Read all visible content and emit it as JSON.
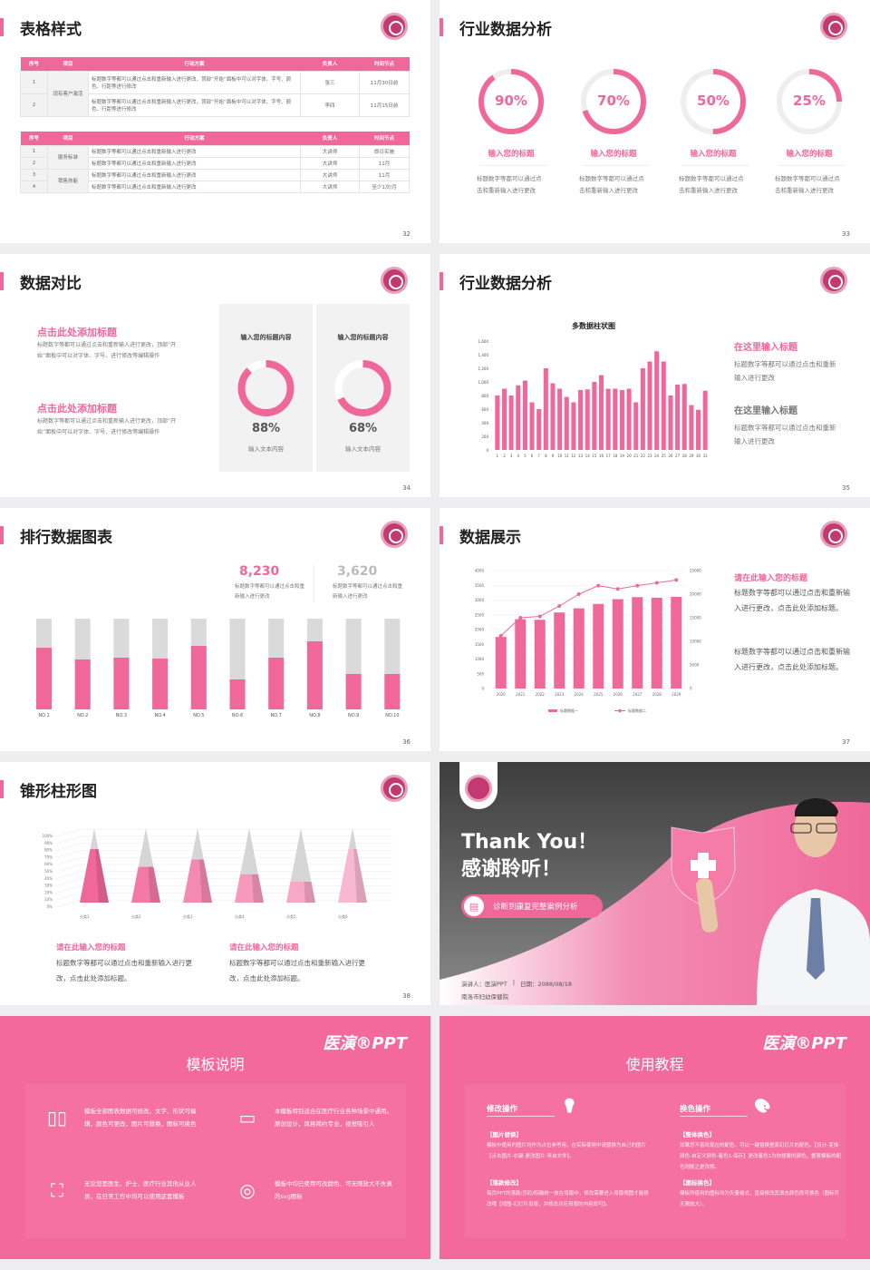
{
  "colors": {
    "accent": "#f0689a",
    "grey": "#dadada",
    "text": "#222222"
  },
  "slide32": {
    "title": "表格样式",
    "page": "32",
    "headers": [
      "序号",
      "项目",
      "行动方案",
      "负责人",
      "时间节点"
    ],
    "table1": {
      "group": "现有客户激活",
      "rows": [
        {
          "no": "1",
          "plan": "标题数字等都可以通过点击和重新输入进行更改，顶部“开始”面板中可以对字体、字号、颜色、行距等进行修改",
          "owner": "张三",
          "time": "11月30日前"
        },
        {
          "no": "2",
          "plan": "标题数字等都可以通过点击和重新输入进行更改，顶部“开始”面板中可以对字体、字号、颜色、行距等进行修改",
          "owner": "李四",
          "time": "11月15日前"
        }
      ]
    },
    "table2": {
      "groups": [
        "服务标准",
        "销售技能"
      ],
      "rows": [
        {
          "no": "1",
          "plan": "标题数字等都可以通过点击和重新输入进行更改",
          "owner": "大讲师",
          "time": "即日实施"
        },
        {
          "no": "2",
          "plan": "标题数字等都可以通过点击和重新输入进行更改",
          "owner": "大讲师",
          "time": "11月"
        },
        {
          "no": "3",
          "plan": "标题数字等都可以通过点击和重新输入进行更改",
          "owner": "大讲师",
          "time": "11月"
        },
        {
          "no": "4",
          "plan": "标题数字等都可以通过点击和重新输入进行更改",
          "owner": "大讲师",
          "time": "至少1次/月"
        }
      ]
    }
  },
  "slide33": {
    "title": "行业数据分析",
    "page": "33",
    "items": [
      {
        "value": 90,
        "label": "90%",
        "heading": "输入您的标题",
        "text": "标题数字等都可以通过点击和重新输入进行更改"
      },
      {
        "value": 70,
        "label": "70%",
        "heading": "输入您的标题",
        "text": "标题数字等都可以通过点击和重新输入进行更改"
      },
      {
        "value": 50,
        "label": "50%",
        "heading": "输入您的标题",
        "text": "标题数字等都可以通过点击和重新输入进行更改"
      },
      {
        "value": 25,
        "label": "25%",
        "heading": "输入您的标题",
        "text": "标题数字等都可以通过点击和重新输入进行更改"
      }
    ]
  },
  "slide34": {
    "title": "数据对比",
    "page": "34",
    "blocks": [
      {
        "heading": "点击此处添加标题",
        "text": "标题数字等都可以通过点击和重新输入进行更改，顶部“开始”面板中可以对字体、字号、进行修改等编辑操作"
      },
      {
        "heading": "点击此处添加标题",
        "text": "标题数字等都可以通过点击和重新输入进行更改，顶部“开始”面板中可以对字体、字号、进行修改等编辑操作"
      }
    ],
    "cards": [
      {
        "heading": "输入您的标题内容",
        "value": 88,
        "label": "88%",
        "caption": "输入文本内容"
      },
      {
        "heading": "输入您的标题内容",
        "value": 68,
        "label": "68%",
        "caption": "输入文本内容"
      }
    ]
  },
  "slide35": {
    "title": "行业数据分析",
    "page": "35",
    "side": [
      {
        "heading": "在这里输入标题",
        "text": "标题数字等都可以通过点击和重新输入进行更改"
      },
      {
        "heading": "在这里输入标题",
        "text": "标题数字等都可以通过点击和重新输入进行更改"
      }
    ]
  },
  "slide36": {
    "title": "排行数据图表",
    "page": "36",
    "stats": [
      {
        "value": "8,230",
        "text": "标题数字等都可以通过点击和重新输入进行更改"
      },
      {
        "value": "3,620",
        "text": "标题数字等都可以通过点击和重新输入进行更改"
      }
    ]
  },
  "slide37": {
    "title": "数据展示",
    "page": "37",
    "heading": "请在此输入您的标题",
    "paras": [
      "标题数字等都可以通过点击和重新输入进行更改，点击此处添加标题。",
      "标题数字等都可以通过点击和重新输入进行更改，点击此处添加标题。"
    ]
  },
  "slide38": {
    "title": "锥形柱形图",
    "page": "38",
    "blocks": [
      {
        "heading": "请在此输入您的标题",
        "text": "标题数字等都可以通过点击和重新输入进行更改，点击此处添加标题。"
      },
      {
        "heading": "请在此输入您的标题",
        "text": "标题数字等都可以通过点击和重新输入进行更改，点击此处添加标题。"
      }
    ]
  },
  "slide39": {
    "title_en": "Thank You！",
    "title_cn": "感谢聆听！",
    "button": "诊断到康复完整案例分析",
    "presenter": "演讲人：医演PPT",
    "date": "日期：2088/08/18",
    "org": "南洛市妇幼保健院"
  },
  "slide40": {
    "brand": "医演®PPT",
    "title": "模板说明",
    "items": [
      {
        "icon": "book-icon",
        "text": "模板全部图表数据可修改，文字、形状可编辑，颜色可更改，图片可替换，图标可换色"
      },
      {
        "icon": "layers-icon",
        "text": "本模板特别适合在医疗行业各种场景中通用。原创设计，风格简约专业，视觉吸引人"
      },
      {
        "icon": "user-card-icon",
        "text": "无论您是医生、护士、医疗行业其他从业人员，在日常工作中均可以使用这套模板"
      },
      {
        "icon": "ball-icon",
        "text": "模板中均已使用可改颜色、可无限放大不失真的svg图标"
      }
    ]
  },
  "slide41": {
    "brand": "医演®PPT",
    "title": "使用教程",
    "cols": [
      {
        "heading": "修改操作",
        "icon": "lightbulb-icon",
        "sections": [
          {
            "title": "【图片替换】",
            "text": "模板中使用的图片均作为占位参考用，在实际使用中请替换为自己的图片【点击图片-右键-更改图片-来自文件】。"
          },
          {
            "title": "【落款修改】",
            "text": "每页PPT的落款/页码/院徽统一放在母版中，修改需要进入母版视图才能修改哦【视图-幻灯片母版，并修改对应母版的内容即可】。"
          }
        ]
      },
      {
        "heading": "换色操作",
        "icon": "palette-icon",
        "sections": [
          {
            "title": "【整体换色】",
            "text": "如果您不喜欢现在的配色，可以一键替换整套幻灯片的配色。【设计-变体-颜色-自定义颜色-着色1-保存】更改着色1为你想要的颜色，整套模板的配色则随之更改哦。"
          },
          {
            "title": "【图标换色】",
            "text": "模板所使用的图标均为矢量格式，直接修改其填充颜色即可换色（图标可无限放大）。"
          }
        ]
      }
    ]
  },
  "chart_data": [
    {
      "type": "bar",
      "title": "多数据柱状图",
      "categories": [
        "1",
        "2",
        "3",
        "4",
        "5",
        "6",
        "7",
        "8",
        "9",
        "10",
        "11",
        "12",
        "13",
        "14",
        "15",
        "16",
        "17",
        "18",
        "19",
        "20",
        "21",
        "22",
        "23",
        "24",
        "25",
        "26",
        "27",
        "28",
        "29",
        "30",
        "31"
      ],
      "values": [
        800,
        900,
        800,
        950,
        1020,
        700,
        600,
        1200,
        980,
        900,
        780,
        700,
        880,
        890,
        1000,
        1100,
        900,
        900,
        880,
        900,
        700,
        1200,
        1300,
        1450,
        1300,
        800,
        960,
        970,
        660,
        590,
        870
      ],
      "ylim": [
        0,
        1600
      ],
      "yticks": [
        "0",
        "200",
        "400",
        "600",
        "800",
        "1,000",
        "1,200",
        "1,400",
        "1,600"
      ]
    },
    {
      "type": "bar",
      "stacked_fill": true,
      "categories": [
        "NO.1",
        "NO.2",
        "NO.3",
        "NO.4",
        "NO.5",
        "NO.6",
        "NO.7",
        "NO.8",
        "NO.9",
        "NO.10"
      ],
      "values": [
        0.68,
        0.55,
        0.57,
        0.56,
        0.7,
        0.33,
        0.57,
        0.75,
        0.39,
        0.39
      ],
      "ylim": [
        0,
        1
      ]
    },
    {
      "type": "bar+line",
      "categories": [
        "2020",
        "2021",
        "2022",
        "2023",
        "2024",
        "2025",
        "2026",
        "2027",
        "2028",
        "2029"
      ],
      "series": [
        {
          "name": "标题数据一",
          "type": "bar",
          "values": [
            1750,
            2350,
            2330,
            2580,
            2720,
            2870,
            3030,
            3100,
            3080,
            3110
          ]
        },
        {
          "name": "标题数据二",
          "type": "line",
          "axis": "right",
          "values": [
            11200,
            15000,
            15300,
            17500,
            20000,
            21800,
            21100,
            21800,
            22400,
            23000
          ]
        }
      ],
      "ylim": [
        0,
        4000
      ],
      "yticks": [
        "0",
        "500",
        "1000",
        "1500",
        "2000",
        "2500",
        "3000",
        "3500",
        "4000"
      ],
      "y2lim": [
        0,
        25000
      ],
      "y2ticks": [
        "0",
        "5000",
        "10000",
        "15000",
        "20000",
        "25000"
      ]
    },
    {
      "type": "pyramid",
      "categories": [
        "分类1",
        "分类2",
        "分类3",
        "分类4",
        "分类5",
        "分类6"
      ],
      "values": [
        0.72,
        0.48,
        0.58,
        0.38,
        0.28,
        0.72
      ],
      "ylim": [
        0,
        1
      ],
      "yticks": [
        "0%",
        "10%",
        "20%",
        "30%",
        "40%",
        "50%",
        "60%",
        "70%",
        "80%",
        "90%",
        "100%"
      ],
      "colors": [
        "#f0689a",
        "#f27aa5",
        "#f48ab0",
        "#f699bb",
        "#f7a8c6",
        "#f9b8d1"
      ]
    }
  ]
}
